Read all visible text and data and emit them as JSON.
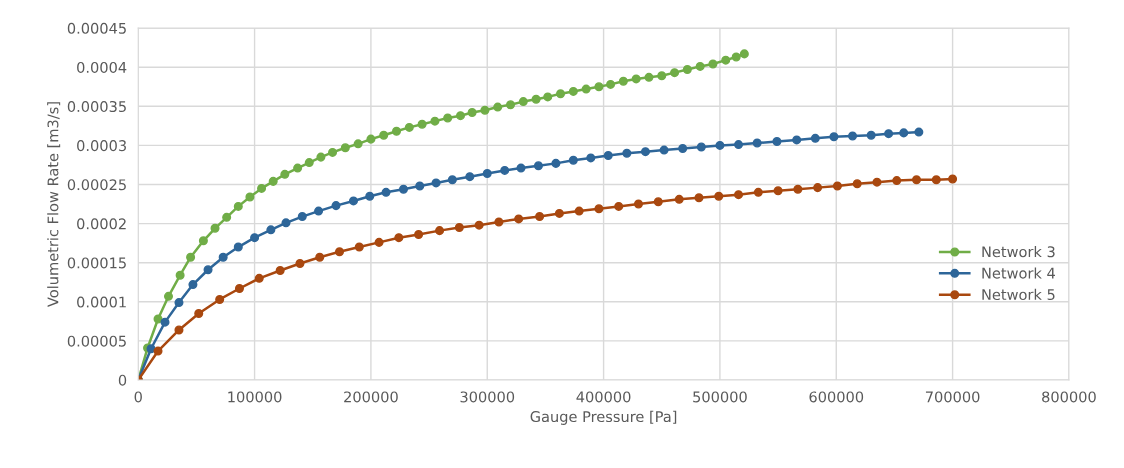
{
  "chart_data": {
    "type": "line",
    "xlabel": "Gauge Pressure [Pa]",
    "ylabel": "Volumetric Flow Rate [m3/s]",
    "xlim": [
      0,
      800000
    ],
    "xticks": [
      0,
      100000,
      200000,
      300000,
      400000,
      500000,
      600000,
      700000,
      800000
    ],
    "ylim": [
      0,
      0.00045
    ],
    "yticks": [
      {
        "value": 0,
        "label": "0"
      },
      {
        "value": 5e-05,
        "label": "0.00005"
      },
      {
        "value": 0.0001,
        "label": "0.0001"
      },
      {
        "value": 0.00015,
        "label": "0.00015"
      },
      {
        "value": 0.0002,
        "label": "0.0002"
      },
      {
        "value": 0.00025,
        "label": "0.00025"
      },
      {
        "value": 0.0003,
        "label": "0.0003"
      },
      {
        "value": 0.00035,
        "label": "0.00035"
      },
      {
        "value": 0.0004,
        "label": "0.0004"
      },
      {
        "value": 0.00045,
        "label": "0.00045"
      }
    ],
    "grid": true,
    "legend": "center right",
    "marker": "circle",
    "line_style": "solid",
    "series": [
      {
        "name": "Network 3",
        "color": "#70ad47",
        "x": [
          0,
          8000,
          17000,
          26000,
          36000,
          45000,
          56000,
          66000,
          76000,
          86000,
          96000,
          106000,
          116000,
          126000,
          137000,
          147000,
          157000,
          167000,
          178000,
          189000,
          200000,
          211000,
          222000,
          233000,
          244000,
          255000,
          266000,
          277000,
          287000,
          298000,
          309000,
          320000,
          331000,
          342000,
          352000,
          363000,
          374000,
          385000,
          396000,
          406000,
          417000,
          428000,
          439000,
          450000,
          461000,
          472000,
          483000,
          494000,
          505000,
          514000,
          521000
        ],
        "values": [
          0,
          4.1e-05,
          7.8e-05,
          0.000107,
          0.000134,
          0.000157,
          0.000178,
          0.000194,
          0.000208,
          0.000222,
          0.000234,
          0.000245,
          0.000254,
          0.000263,
          0.000271,
          0.000278,
          0.000285,
          0.000291,
          0.000297,
          0.000302,
          0.000308,
          0.000313,
          0.000318,
          0.000323,
          0.000327,
          0.000331,
          0.000335,
          0.000338,
          0.000342,
          0.000345,
          0.000349,
          0.000352,
          0.000356,
          0.000359,
          0.000362,
          0.000366,
          0.000369,
          0.000372,
          0.000375,
          0.000378,
          0.000382,
          0.000385,
          0.000387,
          0.000389,
          0.000393,
          0.000397,
          0.000401,
          0.000404,
          0.000409,
          0.000413,
          0.000417
        ]
      },
      {
        "name": "Network 4",
        "color": "#2e6699",
        "x": [
          0,
          11000,
          23000,
          35000,
          47000,
          60000,
          73000,
          86000,
          100000,
          114000,
          127000,
          141000,
          155000,
          170000,
          185000,
          199000,
          213000,
          228000,
          242000,
          256000,
          270000,
          285000,
          300000,
          315000,
          329000,
          344000,
          359000,
          374000,
          389000,
          404000,
          420000,
          436000,
          452000,
          468000,
          484000,
          500000,
          516000,
          532000,
          549000,
          566000,
          582000,
          598000,
          614000,
          630000,
          645000,
          658000,
          671000
        ],
        "values": [
          0,
          4e-05,
          7.4e-05,
          9.9e-05,
          0.000122,
          0.000141,
          0.000157,
          0.00017,
          0.000182,
          0.000192,
          0.000201,
          0.000209,
          0.000216,
          0.000223,
          0.000229,
          0.000235,
          0.00024,
          0.000244,
          0.000248,
          0.000252,
          0.000256,
          0.00026,
          0.000264,
          0.000268,
          0.000271,
          0.000274,
          0.000277,
          0.000281,
          0.000284,
          0.000287,
          0.00029,
          0.000292,
          0.000294,
          0.000296,
          0.000298,
          0.0003,
          0.000301,
          0.000303,
          0.000305,
          0.000307,
          0.000309,
          0.000311,
          0.000312,
          0.000313,
          0.000315,
          0.000316,
          0.000317
        ]
      },
      {
        "name": "Network 5",
        "color": "#a9480f",
        "x": [
          0,
          17000,
          35000,
          52000,
          70000,
          87000,
          104000,
          122000,
          139000,
          156000,
          173000,
          190000,
          207000,
          224000,
          241000,
          259000,
          276000,
          293000,
          310000,
          327000,
          345000,
          362000,
          379000,
          396000,
          413000,
          430000,
          447000,
          465000,
          482000,
          499000,
          516000,
          533000,
          550000,
          567000,
          584000,
          601000,
          618000,
          635000,
          652000,
          669000,
          686000,
          700000
        ],
        "values": [
          0,
          3.7e-05,
          6.4e-05,
          8.5e-05,
          0.000103,
          0.000117,
          0.00013,
          0.00014,
          0.000149,
          0.000157,
          0.000164,
          0.00017,
          0.000176,
          0.000182,
          0.000186,
          0.000191,
          0.000195,
          0.000198,
          0.000202,
          0.000206,
          0.000209,
          0.000213,
          0.000216,
          0.000219,
          0.000222,
          0.000225,
          0.000228,
          0.000231,
          0.000233,
          0.000235,
          0.000237,
          0.00024,
          0.000242,
          0.000244,
          0.000246,
          0.000248,
          0.000251,
          0.000253,
          0.000255,
          0.000256,
          0.000256,
          0.000257
        ]
      }
    ]
  }
}
